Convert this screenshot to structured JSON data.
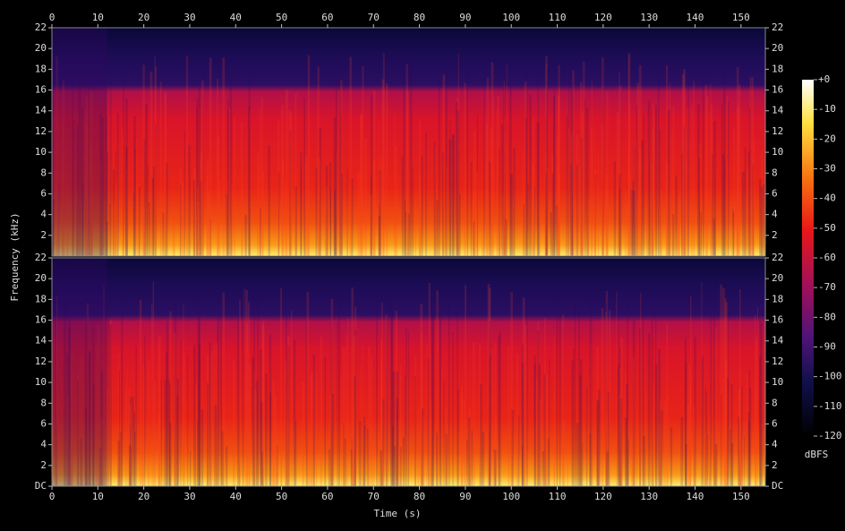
{
  "chart_data": [
    {
      "type": "spectrogram",
      "xlim": [
        0,
        155.3
      ],
      "xticks": [
        0,
        10,
        20,
        30,
        40,
        50,
        60,
        70,
        80,
        90,
        100,
        110,
        120,
        130,
        140,
        150
      ],
      "ylim": [
        0,
        22
      ],
      "yticks": [
        2,
        4,
        6,
        8,
        10,
        12,
        14,
        16,
        18,
        20,
        22
      ]
    },
    {
      "type": "spectrogram",
      "xlim": [
        0,
        155.3
      ],
      "xticks": [
        0,
        10,
        20,
        30,
        40,
        50,
        60,
        70,
        80,
        90,
        100,
        110,
        120,
        130,
        140,
        150
      ],
      "ylim": [
        0,
        22
      ],
      "yticks": [
        {
          "value": 0,
          "label": "DC"
        },
        2,
        4,
        6,
        8,
        10,
        12,
        14,
        16,
        18,
        20,
        22
      ]
    }
  ],
  "x_label": "Time (s)",
  "y_label": "Frequency (kHz)",
  "colorbar": {
    "label": "dBFS",
    "lim": [
      -120,
      0
    ],
    "ticks": [
      {
        "value": 0,
        "label": "+0"
      },
      -10,
      -20,
      -30,
      -40,
      -50,
      -60,
      -70,
      -80,
      -90,
      -100,
      -110,
      -120
    ]
  }
}
